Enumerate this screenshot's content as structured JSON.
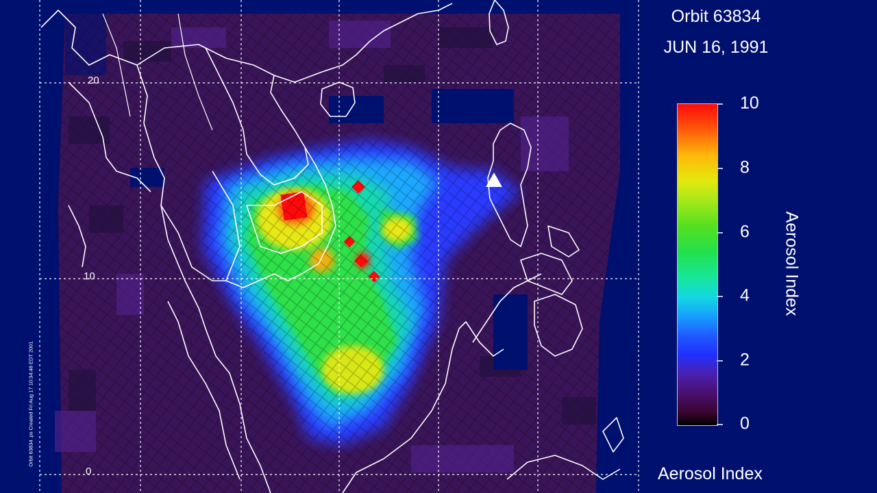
{
  "header": {
    "orbit": "Orbit 63834",
    "date": "JUN 16, 1991"
  },
  "colorbar": {
    "title": "Aerosol Index",
    "ticks": [
      "10",
      "8",
      "6",
      "4",
      "2",
      "0"
    ],
    "range": [
      0,
      10
    ],
    "colors": [
      "#000000",
      "#4a1070",
      "#2030ff",
      "#12d8e0",
      "#22e04a",
      "#e4e80e",
      "#ff0a0a"
    ]
  },
  "map": {
    "lat_labels": [
      "20",
      "10",
      "0"
    ],
    "marker_icon": "triangle-icon",
    "background_color": "#00106e",
    "coastline_color": "#ffffff"
  },
  "footer": {
    "label": "Aerosol Index"
  },
  "credit": "Orbit 63834 .ps Created Fri Aug 17 10:34:48 EDT 2001"
}
